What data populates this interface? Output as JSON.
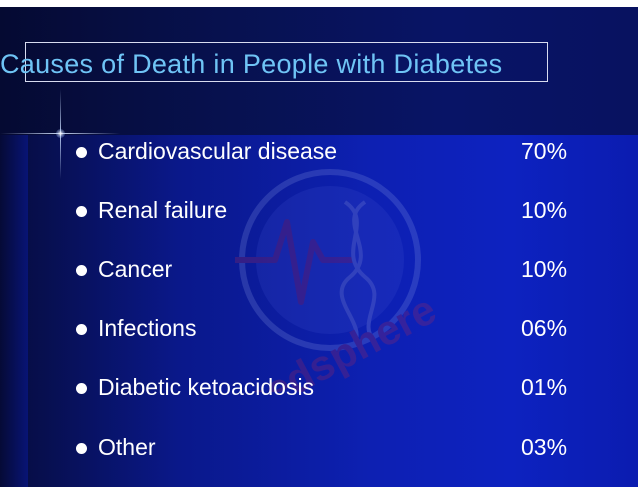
{
  "slide": {
    "title": "Causes of Death in People with Diabetes",
    "watermark_text": "medsphere",
    "items": [
      {
        "label": "Cardiovascular disease",
        "value": "70%"
      },
      {
        "label": "Renal failure",
        "value": "10%"
      },
      {
        "label": "Cancer",
        "value": "10%"
      },
      {
        "label": "Infections",
        "value": "06%"
      },
      {
        "label": "Diabetic ketoacidosis",
        "value": "01%"
      },
      {
        "label": "Other",
        "value": "03%"
      }
    ]
  },
  "colors": {
    "background_dark": "#060c3c",
    "background_bright": "#0d22c0",
    "title_text": "#6fc4f5",
    "body_text": "#ffffff",
    "watermark": "#c42a4a"
  }
}
